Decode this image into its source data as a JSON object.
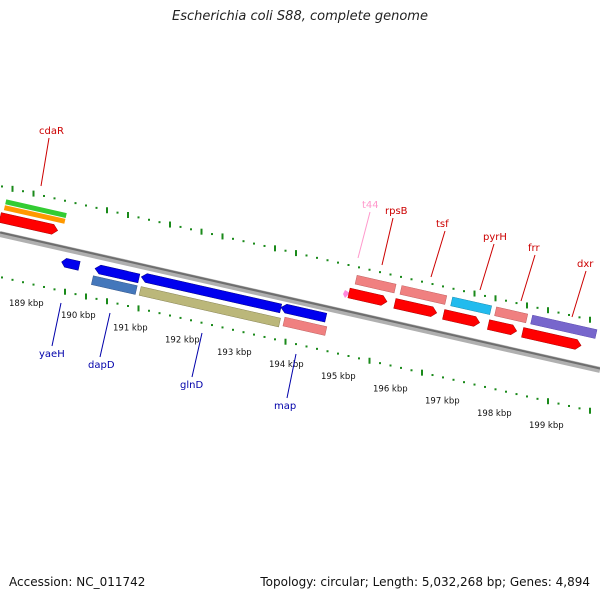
{
  "title": "Escherichia coli S88, complete genome",
  "footer": {
    "accession": "Accession: NC_011742",
    "topology": "Topology: circular; Length: 5,032,268 bp; Genes: 4,894"
  },
  "colors": {
    "backbone": "#808080",
    "gc_dots": "#1a8a1a",
    "cds_forward": "#ff0000",
    "cds_reverse": "#0000ff",
    "label_forward": "#cc0000",
    "label_reverse": "#0000aa",
    "trna": "#ff99cc"
  },
  "ticks": [
    "189 kbp",
    "190 kbp",
    "191 kbp",
    "192 kbp",
    "193 kbp",
    "194 kbp",
    "195 kbp",
    "196 kbp",
    "197 kbp",
    "198 kbp",
    "199 kbp"
  ],
  "genes": {
    "top": [
      {
        "name": "cdaR",
        "color": "#cc0000"
      },
      {
        "name": "t44",
        "color": "#ff99cc"
      },
      {
        "name": "rpsB",
        "color": "#cc0000"
      },
      {
        "name": "tsf",
        "color": "#cc0000"
      },
      {
        "name": "pyrH",
        "color": "#cc0000"
      },
      {
        "name": "frr",
        "color": "#cc0000"
      },
      {
        "name": "dxr",
        "color": "#cc0000"
      }
    ],
    "bottom": [
      {
        "name": "yaeH",
        "color": "#0000aa"
      },
      {
        "name": "dapD",
        "color": "#0000aa"
      },
      {
        "name": "glnD",
        "color": "#0000aa"
      },
      {
        "name": "map",
        "color": "#0000aa"
      }
    ]
  }
}
